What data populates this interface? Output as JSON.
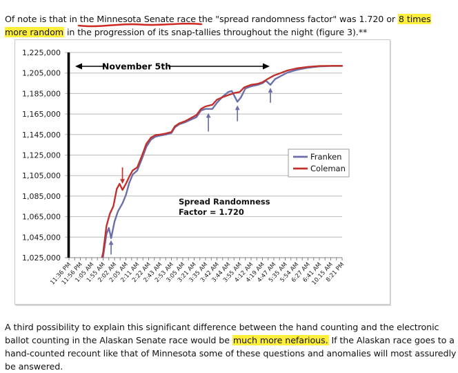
{
  "colors": {
    "highlight": "#ffef3a",
    "annotation_red": "#cc2a23",
    "franken_blue": "#6B6FA9",
    "coleman_red": "#C2302C",
    "gridline_gray": "#b8b8b8",
    "axis_gray": "#808080"
  },
  "page": {
    "top_paragraph": {
      "pre": "Of note is that in ",
      "underlined": "the Minnesota Senate race",
      "mid": " the \"spread randomness factor\" was 1.720 or ",
      "highlight1": "8 times more random",
      "post": " in the progression of its snap-tallies throughout the night (figure 3).**"
    },
    "bottom_paragraph": {
      "pre": "A third possibility to explain this significant difference between the hand counting and the electronic ballot counting in the Alaskan Senate race would be ",
      "highlight": "much more nefarious.",
      "post": " If the Alaskan race goes to a hand-counted recount like that of Minnesota some of these questions and anomalies will most assuredly be answered."
    }
  },
  "chart_data": {
    "type": "line",
    "categories": [
      "11:36 PM",
      "11:56 PM",
      "1:05 AM",
      "1:55 AM",
      "2:02 AM",
      "2:05 AM",
      "2:11 AM",
      "2:22 AM",
      "2:43 AM",
      "2:53 AM",
      "3:05 AM",
      "3:21 AM",
      "3:35 AM",
      "3:42 AM",
      "3:44 AM",
      "3:55 AM",
      "4:12 AM",
      "4:19 AM",
      "4:47 AM",
      "5:35 AM",
      "5:54 AM",
      "6:27 AM",
      "6:41 AM",
      "10.15 AM",
      "8:21 PM"
    ],
    "ylim": [
      1025000,
      1225000
    ],
    "ytick_step": 20000,
    "grid": true,
    "legend_position": "middle-right",
    "series": [
      {
        "name": "Franken",
        "color": "#6B6FA9",
        "points": [
          [
            0,
            955000
          ],
          [
            1,
            980000
          ],
          [
            2,
            998000
          ],
          [
            2.6,
            1006000
          ],
          [
            3.0,
            1026000
          ],
          [
            3.3,
            1048000
          ],
          [
            3.5,
            1054000
          ],
          [
            3.7,
            1044000
          ],
          [
            4.0,
            1060000
          ],
          [
            4.3,
            1070000
          ],
          [
            4.7,
            1078000
          ],
          [
            5.0,
            1086000
          ],
          [
            5.3,
            1098000
          ],
          [
            5.6,
            1106000
          ],
          [
            6.0,
            1110000
          ],
          [
            6.4,
            1121000
          ],
          [
            6.8,
            1133000
          ],
          [
            7.2,
            1140000
          ],
          [
            7.6,
            1143000
          ],
          [
            8.0,
            1144000
          ],
          [
            8.5,
            1145000
          ],
          [
            9.0,
            1146500
          ],
          [
            9.3,
            1152000
          ],
          [
            9.7,
            1155000
          ],
          [
            10.2,
            1157000
          ],
          [
            10.7,
            1159500
          ],
          [
            11.2,
            1162000
          ],
          [
            11.6,
            1168500
          ],
          [
            12.0,
            1170000
          ],
          [
            12.6,
            1170000
          ],
          [
            13.0,
            1176000
          ],
          [
            13.5,
            1182000
          ],
          [
            14.0,
            1186500
          ],
          [
            14.3,
            1187500
          ],
          [
            14.8,
            1177000
          ],
          [
            15.1,
            1181000
          ],
          [
            15.5,
            1190000
          ],
          [
            16.0,
            1192000
          ],
          [
            16.6,
            1193500
          ],
          [
            17.0,
            1195000
          ],
          [
            17.3,
            1197500
          ],
          [
            17.7,
            1193500
          ],
          [
            18.1,
            1199000
          ],
          [
            18.6,
            1202000
          ],
          [
            19.2,
            1205500
          ],
          [
            20.0,
            1208000
          ],
          [
            21.0,
            1210200
          ],
          [
            22.0,
            1211400
          ],
          [
            23.0,
            1211800
          ],
          [
            24.0,
            1211900
          ]
        ]
      },
      {
        "name": "Coleman",
        "color": "#C2302C",
        "points": [
          [
            0,
            960000
          ],
          [
            1,
            985000
          ],
          [
            2,
            1002000
          ],
          [
            2.6,
            1010000
          ],
          [
            3.0,
            1030000
          ],
          [
            3.3,
            1056000
          ],
          [
            3.6,
            1068000
          ],
          [
            3.9,
            1075000
          ],
          [
            4.2,
            1092000
          ],
          [
            4.45,
            1097000
          ],
          [
            4.7,
            1091000
          ],
          [
            5.0,
            1097000
          ],
          [
            5.3,
            1104000
          ],
          [
            5.6,
            1110000
          ],
          [
            6.0,
            1113000
          ],
          [
            6.4,
            1124000
          ],
          [
            6.8,
            1136000
          ],
          [
            7.2,
            1142000
          ],
          [
            7.6,
            1144500
          ],
          [
            8.0,
            1145000
          ],
          [
            8.5,
            1146000
          ],
          [
            9.0,
            1147500
          ],
          [
            9.3,
            1153000
          ],
          [
            9.7,
            1156000
          ],
          [
            10.2,
            1158000
          ],
          [
            10.7,
            1161000
          ],
          [
            11.2,
            1164000
          ],
          [
            11.6,
            1170000
          ],
          [
            12.0,
            1172500
          ],
          [
            12.6,
            1174000
          ],
          [
            13.0,
            1179000
          ],
          [
            13.5,
            1181500
          ],
          [
            14.0,
            1183500
          ],
          [
            14.5,
            1185500
          ],
          [
            15.0,
            1186500
          ],
          [
            15.4,
            1191000
          ],
          [
            16.0,
            1193500
          ],
          [
            16.6,
            1194500
          ],
          [
            17.0,
            1196000
          ],
          [
            17.5,
            1199500
          ],
          [
            18.0,
            1202500
          ],
          [
            18.6,
            1205000
          ],
          [
            19.2,
            1207500
          ],
          [
            20.0,
            1209500
          ],
          [
            21.0,
            1211000
          ],
          [
            22.0,
            1211800
          ],
          [
            23.0,
            1212000
          ],
          [
            24.0,
            1212000
          ]
        ]
      }
    ],
    "annotations": {
      "period_label": "November 5th",
      "note_line1": "Spread Randomness",
      "note_line2": "Factor = 1.720",
      "midnight_marker_x_index": 0,
      "up_arrows": [
        [
          3.7,
          1028000,
          1042000
        ],
        [
          12.25,
          1148000,
          1166000
        ],
        [
          14.8,
          1158000,
          1173500
        ],
        [
          17.7,
          1176000,
          1190500
        ]
      ],
      "down_arrows": [
        [
          4.7,
          1113000,
          1097000
        ]
      ]
    }
  }
}
